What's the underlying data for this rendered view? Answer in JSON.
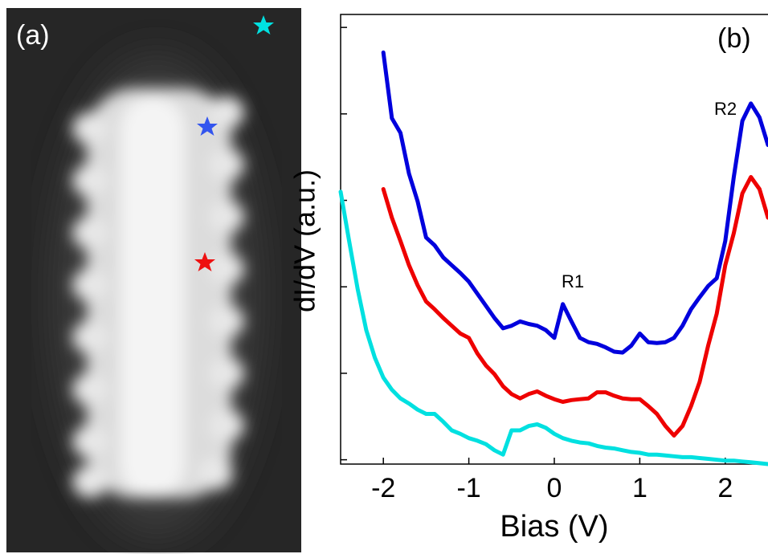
{
  "panel_a": {
    "label": "(a)"
  },
  "chart_data": {
    "type": "line",
    "panel_label": "(b)",
    "xlabel": "Bias (V)",
    "ylabel": "dI/dV (a.u.)",
    "annotations": [
      "R1",
      "R2"
    ],
    "x": [
      -2.5,
      -2.4,
      -2.3,
      -2.2,
      -2.1,
      -2.0,
      -1.9,
      -1.8,
      -1.7,
      -1.6,
      -1.5,
      -1.4,
      -1.3,
      -1.2,
      -1.1,
      -1.0,
      -0.9,
      -0.8,
      -0.7,
      -0.6,
      -0.5,
      -0.4,
      -0.3,
      -0.2,
      -0.1,
      0.0,
      0.1,
      0.2,
      0.3,
      0.4,
      0.5,
      0.6,
      0.7,
      0.8,
      0.9,
      1.0,
      1.1,
      1.2,
      1.3,
      1.4,
      1.5,
      1.6,
      1.7,
      1.8,
      1.9,
      2.0,
      2.1,
      2.2,
      2.3,
      2.4,
      2.5
    ],
    "series": [
      {
        "color": "#0000dd",
        "values": [
          null,
          null,
          null,
          null,
          null,
          4.71,
          3.95,
          3.78,
          3.31,
          2.99,
          2.57,
          2.48,
          2.34,
          2.25,
          2.16,
          2.06,
          1.92,
          1.78,
          1.64,
          1.52,
          1.55,
          1.6,
          1.57,
          1.55,
          1.5,
          1.41,
          1.8,
          1.6,
          1.41,
          1.36,
          1.34,
          1.3,
          1.25,
          1.24,
          1.32,
          1.46,
          1.36,
          1.35,
          1.36,
          1.41,
          1.55,
          1.74,
          1.88,
          2.01,
          2.1,
          2.53,
          3.27,
          3.92,
          4.12,
          3.96,
          3.64
        ]
      },
      {
        "color": "#ee0000",
        "values": [
          null,
          null,
          null,
          null,
          null,
          3.13,
          2.8,
          2.53,
          2.25,
          2.02,
          1.83,
          1.74,
          1.64,
          1.55,
          1.46,
          1.41,
          1.23,
          1.09,
          0.99,
          0.85,
          0.76,
          0.71,
          0.76,
          0.79,
          0.74,
          0.7,
          0.67,
          0.69,
          0.7,
          0.71,
          0.78,
          0.78,
          0.74,
          0.71,
          0.7,
          0.7,
          0.62,
          0.53,
          0.39,
          0.28,
          0.39,
          0.62,
          0.9,
          1.32,
          1.69,
          2.25,
          2.62,
          3.08,
          3.27,
          3.13,
          2.8
        ]
      },
      {
        "color": "#00e0e0",
        "values": [
          3.1,
          2.53,
          1.97,
          1.5,
          1.18,
          0.95,
          0.81,
          0.71,
          0.65,
          0.58,
          0.53,
          0.53,
          0.44,
          0.34,
          0.3,
          0.25,
          0.22,
          0.18,
          0.11,
          0.06,
          0.34,
          0.34,
          0.39,
          0.41,
          0.37,
          0.3,
          0.25,
          0.22,
          0.2,
          0.19,
          0.16,
          0.14,
          0.13,
          0.11,
          0.09,
          0.08,
          0.06,
          0.06,
          0.05,
          0.04,
          0.03,
          0.03,
          0.02,
          0.01,
          0.0,
          -0.01,
          -0.01,
          -0.02,
          -0.03,
          -0.04,
          -0.05
        ]
      }
    ],
    "xlim": [
      -2.5,
      2.5
    ],
    "xticks": [
      -2,
      -1,
      0,
      1,
      2
    ],
    "ylim": [
      -0.05,
      5.15
    ],
    "yticks": [
      0,
      1,
      2,
      3,
      4,
      5
    ]
  }
}
